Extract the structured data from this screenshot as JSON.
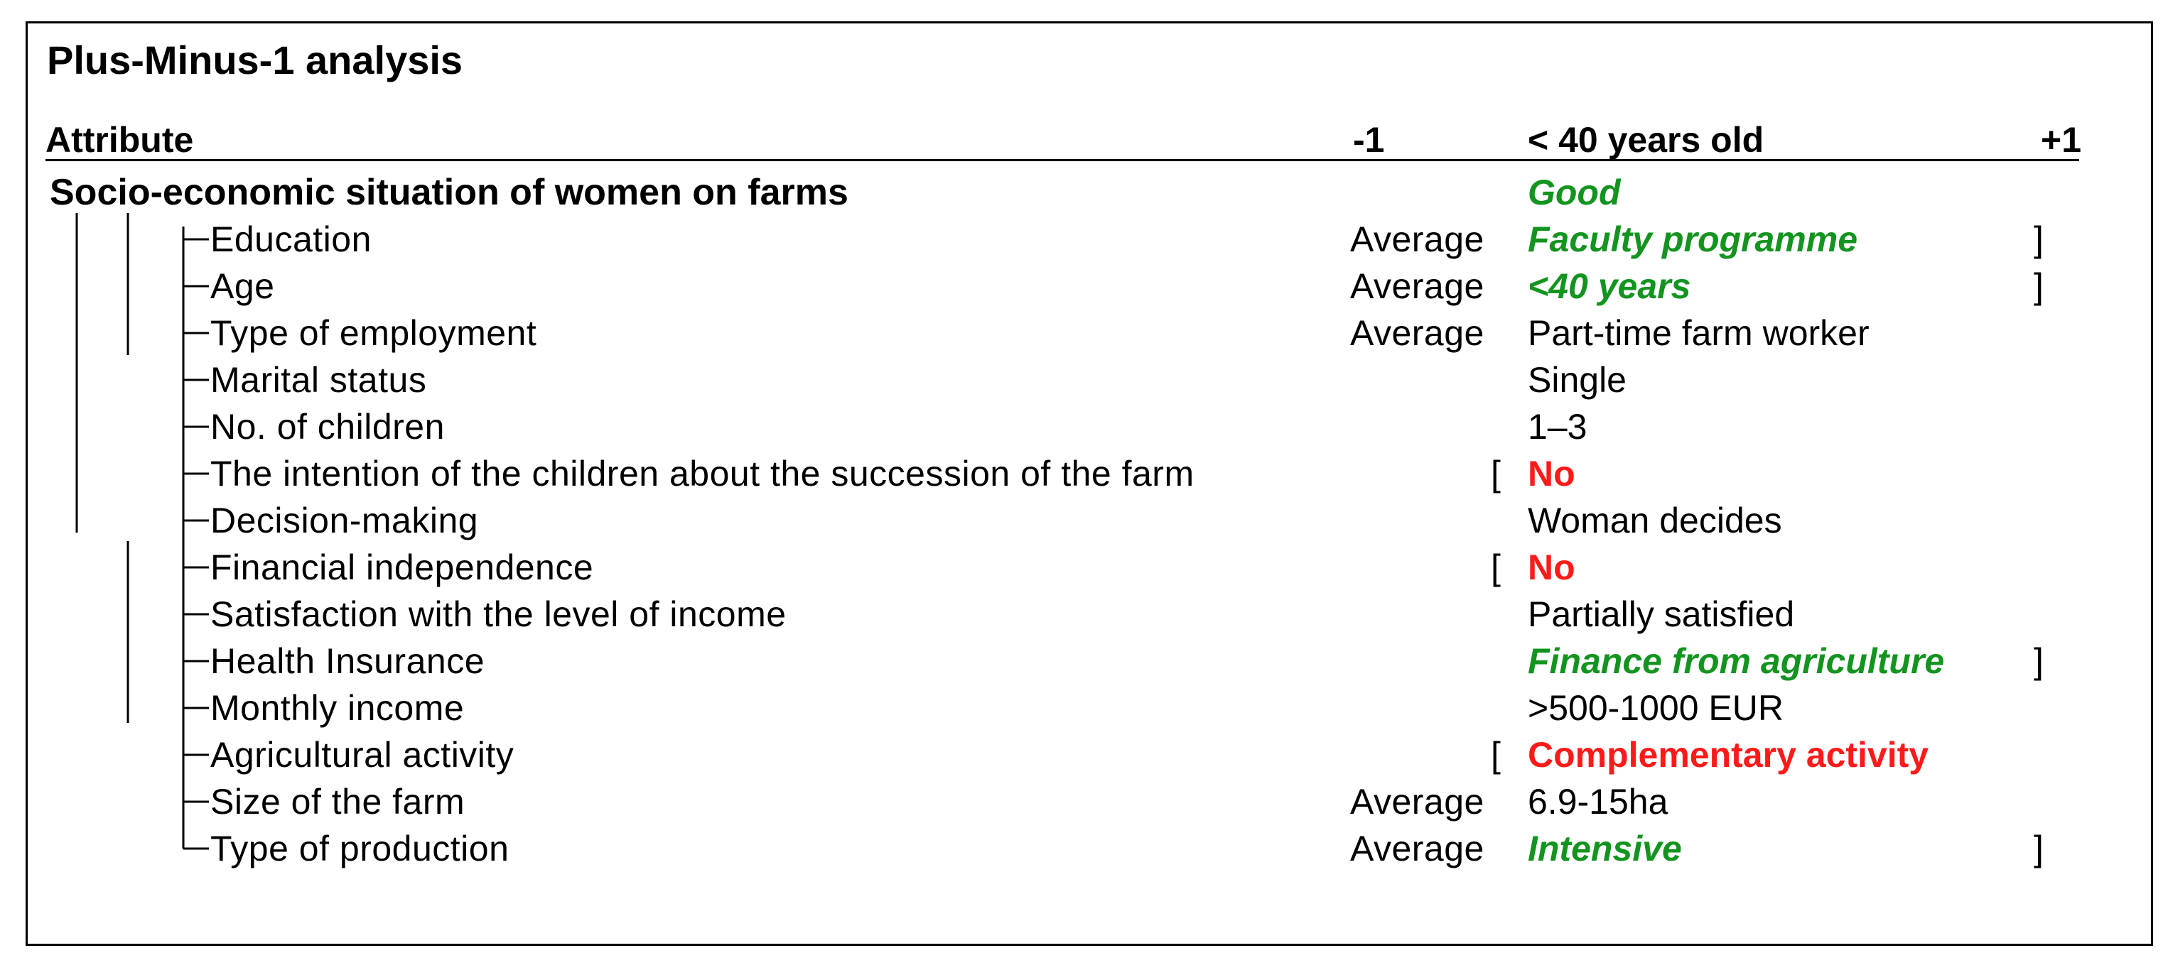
{
  "title": "Plus-Minus-1 analysis",
  "header": {
    "attribute": "Attribute",
    "minus": "-1",
    "value": "< 40 years old",
    "plus": "+1"
  },
  "rows": [
    {
      "label": "Socio-economic situation of women on farms",
      "minus": "",
      "left_bracket": "",
      "value": "Good",
      "value_style": "good",
      "right_bracket": ""
    },
    {
      "label": "Education",
      "minus": "Average",
      "left_bracket": "",
      "value": "Faculty programme",
      "value_style": "good",
      "right_bracket": "]"
    },
    {
      "label": "Age",
      "minus": "Average",
      "left_bracket": "",
      "value": "<40 years",
      "value_style": "good",
      "right_bracket": "]"
    },
    {
      "label": "Type of employment",
      "minus": "Average",
      "left_bracket": "",
      "value": "Part-time farm worker",
      "value_style": "normal",
      "right_bracket": ""
    },
    {
      "label": "Marital status",
      "minus": "",
      "left_bracket": "",
      "value": "Single",
      "value_style": "normal",
      "right_bracket": ""
    },
    {
      "label": "No. of children",
      "minus": "",
      "left_bracket": "",
      "value": "1–3",
      "value_style": "normal",
      "right_bracket": ""
    },
    {
      "label": "The intention of the children about the succession of the farm",
      "minus": "",
      "left_bracket": "[",
      "value": "No",
      "value_style": "bad",
      "right_bracket": ""
    },
    {
      "label": "Decision-making",
      "minus": "",
      "left_bracket": "",
      "value": "Woman decides",
      "value_style": "normal",
      "right_bracket": ""
    },
    {
      "label": "Financial independence",
      "minus": "",
      "left_bracket": "[",
      "value": "No",
      "value_style": "bad",
      "right_bracket": ""
    },
    {
      "label": "Satisfaction with the level of income",
      "minus": "",
      "left_bracket": "",
      "value": "Partially satisfied",
      "value_style": "normal",
      "right_bracket": ""
    },
    {
      "label": "Health Insurance",
      "minus": "",
      "left_bracket": "",
      "value": "Finance from agriculture",
      "value_style": "good",
      "right_bracket": "]"
    },
    {
      "label": "Monthly income",
      "minus": "",
      "left_bracket": "",
      "value": ">500-1000 EUR",
      "value_style": "normal",
      "right_bracket": ""
    },
    {
      "label": "Agricultural activity",
      "minus": "",
      "left_bracket": "[",
      "value": "Complementary activity",
      "value_style": "bad",
      "right_bracket": ""
    },
    {
      "label": "Size of the farm",
      "minus": "Average",
      "left_bracket": "",
      "value": "6.9-15ha",
      "value_style": "normal",
      "right_bracket": ""
    },
    {
      "label": "Type of production",
      "minus": "Average",
      "left_bracket": "",
      "value": "Intensive",
      "value_style": "good",
      "right_bracket": "]"
    }
  ]
}
